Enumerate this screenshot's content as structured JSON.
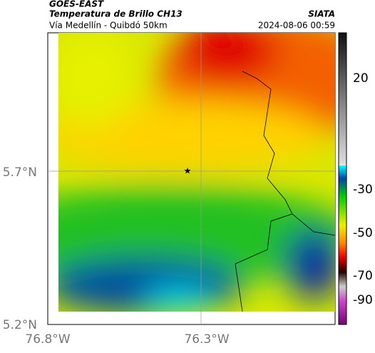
{
  "header": {
    "title": "GOES-EAST",
    "subtitle": "Temperatura de Brillo CH13",
    "route": "Vía Medellín - Quibdó 50km",
    "source": "SIATA",
    "timestamp": "2024-08-06 00:59"
  },
  "map": {
    "lat_labels": [
      "5.7°N",
      "5.2°N"
    ],
    "lon_labels": [
      "76.8°W",
      "76.3°W"
    ]
  },
  "colorbar": {
    "ticks": [
      20,
      -30,
      -50,
      -70,
      -90
    ]
  }
}
